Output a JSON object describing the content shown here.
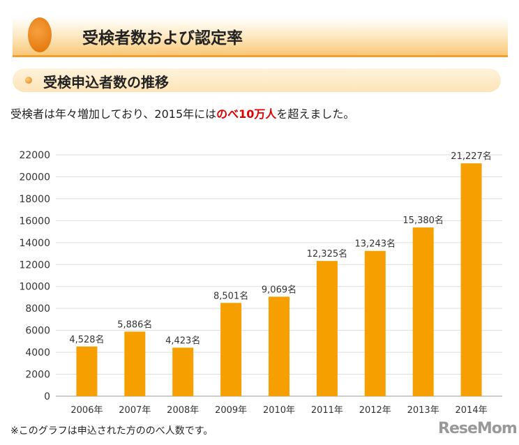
{
  "header": {
    "title": "受検者数および認定率",
    "icon": "globe-icon"
  },
  "section": {
    "title": "受検申込者数の推移",
    "icon": "bullet-dot-icon"
  },
  "intro": {
    "before": "受検者は年々増加しており、2015年には",
    "highlight": "のべ10万人",
    "after": "を超えました。"
  },
  "note": "※このグラフは申込された方ののべ人数です。",
  "logo": "ReseMom",
  "colors": {
    "bar": "#f5a000",
    "highlight": "#e00000",
    "header_border": "#f0a030"
  },
  "chart_data": {
    "type": "bar",
    "title": "",
    "xlabel": "",
    "ylabel": "",
    "categories": [
      "2006年",
      "2007年",
      "2008年",
      "2009年",
      "2010年",
      "2011年",
      "2012年",
      "2013年",
      "2014年"
    ],
    "values": [
      4528,
      5886,
      4423,
      8501,
      9069,
      12325,
      13243,
      15380,
      21227
    ],
    "data_labels": [
      "4,528名",
      "5,886名",
      "4,423名",
      "8,501名",
      "9,069名",
      "12,325名",
      "13,243名",
      "15,380名",
      "21,227名"
    ],
    "ylim": [
      0,
      22000
    ],
    "yticks": [
      0,
      2000,
      4000,
      6000,
      8000,
      10000,
      12000,
      14000,
      16000,
      18000,
      20000,
      22000
    ],
    "grid": true,
    "legend": "none"
  }
}
